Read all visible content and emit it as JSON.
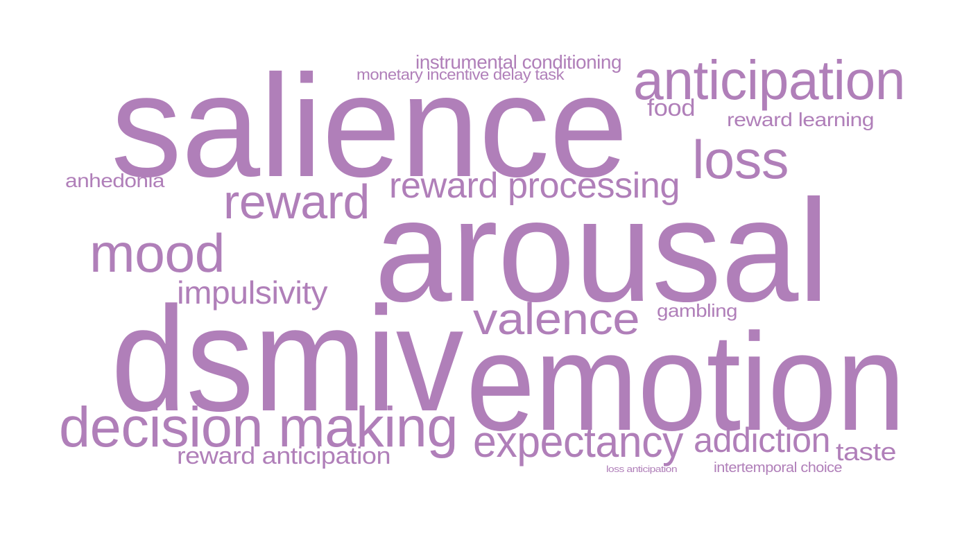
{
  "word_color": "#b07fb9",
  "background_color": "#ffffff",
  "words": [
    {
      "text": "salience"
    },
    {
      "text": "arousal"
    },
    {
      "text": "dsmiv"
    },
    {
      "text": "emotion"
    },
    {
      "text": "anticipation"
    },
    {
      "text": "decision making"
    },
    {
      "text": "loss"
    },
    {
      "text": "reward"
    },
    {
      "text": "reward processing"
    },
    {
      "text": "mood"
    },
    {
      "text": "valence"
    },
    {
      "text": "expectancy"
    },
    {
      "text": "addiction"
    },
    {
      "text": "impulsivity"
    },
    {
      "text": "reward anticipation"
    },
    {
      "text": "taste"
    },
    {
      "text": "instrumental conditioning"
    },
    {
      "text": "monetary incentive delay task"
    },
    {
      "text": "food"
    },
    {
      "text": "reward learning"
    },
    {
      "text": "anhedonia"
    },
    {
      "text": "gambling"
    },
    {
      "text": "intertemporal choice"
    },
    {
      "text": "loss anticipation"
    }
  ]
}
